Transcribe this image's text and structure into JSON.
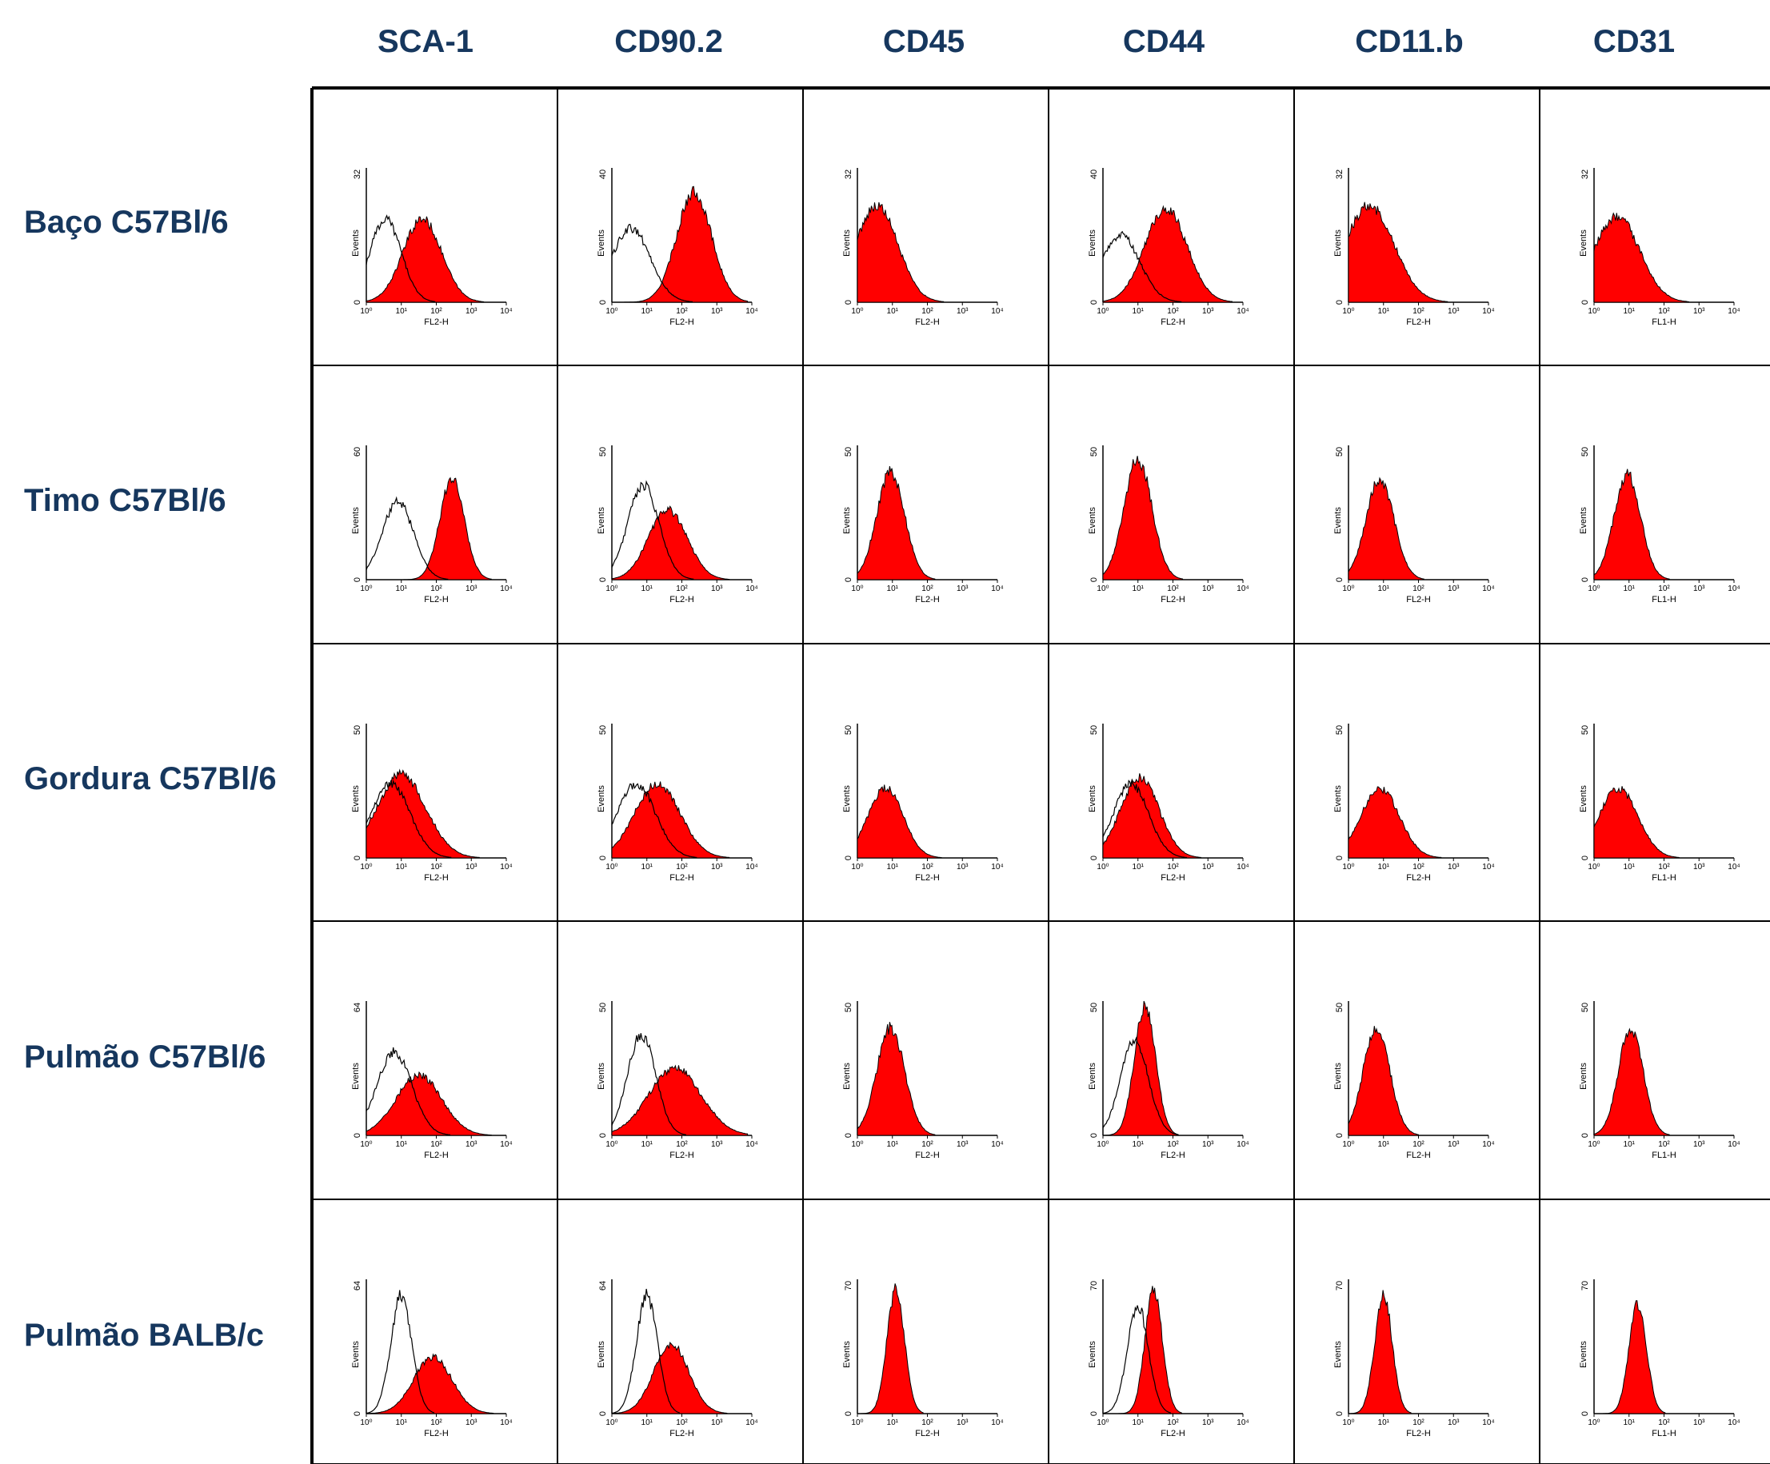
{
  "columns": [
    "SCA-1",
    "CD90.2",
    "CD45",
    "CD44",
    "CD11.b",
    "CD31"
  ],
  "rows": [
    "Baço C57Bl/6",
    "Timo C57Bl/6",
    "Gordura C57Bl/6",
    "Pulmão C57Bl/6",
    "Pulmão BALB/c"
  ],
  "axis": {
    "ylabel": "Events",
    "xticks": [
      "10⁰",
      "10¹",
      "10²",
      "10³",
      "10⁴"
    ]
  },
  "colors": {
    "header": "#16375e",
    "fill": "#ff0000",
    "line": "#000000"
  },
  "chart_data": {
    "type": "histogram-grid",
    "x_scale": "log",
    "xlim": [
      1,
      10000
    ],
    "panels": [
      [
        {
          "channel": "FL2-H",
          "ymax": 32,
          "stained": {
            "mode": 1.6,
            "sigma": 0.55,
            "peak": 0.62
          },
          "control": {
            "mode": 0.55,
            "sigma": 0.45,
            "peak": 0.62
          }
        },
        {
          "channel": "FL2-H",
          "ymax": 40,
          "stained": {
            "mode": 2.35,
            "sigma": 0.5,
            "peak": 0.82
          },
          "control": {
            "mode": 0.55,
            "sigma": 0.55,
            "peak": 0.55
          }
        },
        {
          "channel": "FL2-H",
          "ymax": 32,
          "stained": {
            "mode": 0.55,
            "sigma": 0.6,
            "peak": 0.72
          },
          "control": null
        },
        {
          "channel": "FL2-H",
          "ymax": 40,
          "stained": {
            "mode": 1.8,
            "sigma": 0.6,
            "peak": 0.7
          },
          "control": {
            "mode": 0.5,
            "sigma": 0.55,
            "peak": 0.5
          }
        },
        {
          "channel": "FL2-H",
          "ymax": 32,
          "stained": {
            "mode": 0.6,
            "sigma": 0.7,
            "peak": 0.72
          },
          "control": null
        },
        {
          "channel": "FL1-H",
          "ymax": 32,
          "stained": {
            "mode": 0.65,
            "sigma": 0.65,
            "peak": 0.64
          },
          "control": null
        }
      ],
      [
        {
          "channel": "FL2-H",
          "ymax": 60,
          "stained": {
            "mode": 2.45,
            "sigma": 0.35,
            "peak": 0.75
          },
          "control": {
            "mode": 0.9,
            "sigma": 0.45,
            "peak": 0.58
          }
        },
        {
          "channel": "FL2-H",
          "ymax": 50,
          "stained": {
            "mode": 1.6,
            "sigma": 0.55,
            "peak": 0.52
          },
          "control": {
            "mode": 0.9,
            "sigma": 0.45,
            "peak": 0.7
          }
        },
        {
          "channel": "FL2-H",
          "ymax": 50,
          "stained": {
            "mode": 0.95,
            "sigma": 0.4,
            "peak": 0.8
          },
          "control": null
        },
        {
          "channel": "FL2-H",
          "ymax": 50,
          "stained": {
            "mode": 1.0,
            "sigma": 0.4,
            "peak": 0.9
          },
          "control": null
        },
        {
          "channel": "FL2-H",
          "ymax": 50,
          "stained": {
            "mode": 0.9,
            "sigma": 0.4,
            "peak": 0.75
          },
          "control": null
        },
        {
          "channel": "FL1-H",
          "ymax": 50,
          "stained": {
            "mode": 0.95,
            "sigma": 0.38,
            "peak": 0.78
          },
          "control": null
        }
      ],
      [
        {
          "channel": "FL2-H",
          "ymax": 50,
          "stained": {
            "mode": 1.0,
            "sigma": 0.7,
            "peak": 0.62
          },
          "control": {
            "mode": 0.7,
            "sigma": 0.55,
            "peak": 0.55
          }
        },
        {
          "channel": "FL2-H",
          "ymax": 50,
          "stained": {
            "mode": 1.3,
            "sigma": 0.65,
            "peak": 0.55
          },
          "control": {
            "mode": 0.7,
            "sigma": 0.55,
            "peak": 0.55
          }
        },
        {
          "channel": "FL2-H",
          "ymax": 50,
          "stained": {
            "mode": 0.8,
            "sigma": 0.5,
            "peak": 0.52
          },
          "control": null
        },
        {
          "channel": "FL2-H",
          "ymax": 50,
          "stained": {
            "mode": 1.05,
            "sigma": 0.55,
            "peak": 0.6
          },
          "control": {
            "mode": 0.8,
            "sigma": 0.5,
            "peak": 0.55
          }
        },
        {
          "channel": "FL2-H",
          "ymax": 50,
          "stained": {
            "mode": 0.9,
            "sigma": 0.55,
            "peak": 0.52
          },
          "control": null
        },
        {
          "channel": "FL1-H",
          "ymax": 50,
          "stained": {
            "mode": 0.7,
            "sigma": 0.55,
            "peak": 0.52
          },
          "control": null
        }
      ],
      [
        {
          "channel": "FL2-H",
          "ymax": 64,
          "stained": {
            "mode": 1.5,
            "sigma": 0.65,
            "peak": 0.45
          },
          "control": {
            "mode": 0.8,
            "sigma": 0.5,
            "peak": 0.62
          }
        },
        {
          "channel": "FL2-H",
          "ymax": 50,
          "stained": {
            "mode": 1.8,
            "sigma": 0.75,
            "peak": 0.5
          },
          "control": {
            "mode": 0.85,
            "sigma": 0.4,
            "peak": 0.75
          }
        },
        {
          "channel": "FL2-H",
          "ymax": 50,
          "stained": {
            "mode": 0.95,
            "sigma": 0.4,
            "peak": 0.8
          },
          "control": null
        },
        {
          "channel": "FL2-H",
          "ymax": 50,
          "stained": {
            "mode": 1.2,
            "sigma": 0.3,
            "peak": 0.97
          },
          "control": {
            "mode": 0.9,
            "sigma": 0.4,
            "peak": 0.7
          }
        },
        {
          "channel": "FL2-H",
          "ymax": 50,
          "stained": {
            "mode": 0.8,
            "sigma": 0.38,
            "peak": 0.8
          },
          "control": null
        },
        {
          "channel": "FL1-H",
          "ymax": 50,
          "stained": {
            "mode": 1.05,
            "sigma": 0.35,
            "peak": 0.8
          },
          "control": null
        }
      ],
      [
        {
          "channel": "FL2-H",
          "ymax": 64,
          "stained": {
            "mode": 1.9,
            "sigma": 0.55,
            "peak": 0.42
          },
          "control": {
            "mode": 1.0,
            "sigma": 0.3,
            "peak": 0.88
          }
        },
        {
          "channel": "FL2-H",
          "ymax": 64,
          "stained": {
            "mode": 1.7,
            "sigma": 0.5,
            "peak": 0.52
          },
          "control": {
            "mode": 1.0,
            "sigma": 0.3,
            "peak": 0.88
          }
        },
        {
          "channel": "FL2-H",
          "ymax": 70,
          "stained": {
            "mode": 1.1,
            "sigma": 0.25,
            "peak": 0.92
          },
          "control": null
        },
        {
          "channel": "FL2-H",
          "ymax": 70,
          "stained": {
            "mode": 1.45,
            "sigma": 0.25,
            "peak": 0.92
          },
          "control": {
            "mode": 1.0,
            "sigma": 0.3,
            "peak": 0.8
          }
        },
        {
          "channel": "FL2-H",
          "ymax": 70,
          "stained": {
            "mode": 1.0,
            "sigma": 0.25,
            "peak": 0.88
          },
          "control": null
        },
        {
          "channel": "FL1-H",
          "ymax": 70,
          "stained": {
            "mode": 1.25,
            "sigma": 0.25,
            "peak": 0.82
          },
          "control": null
        }
      ]
    ]
  }
}
